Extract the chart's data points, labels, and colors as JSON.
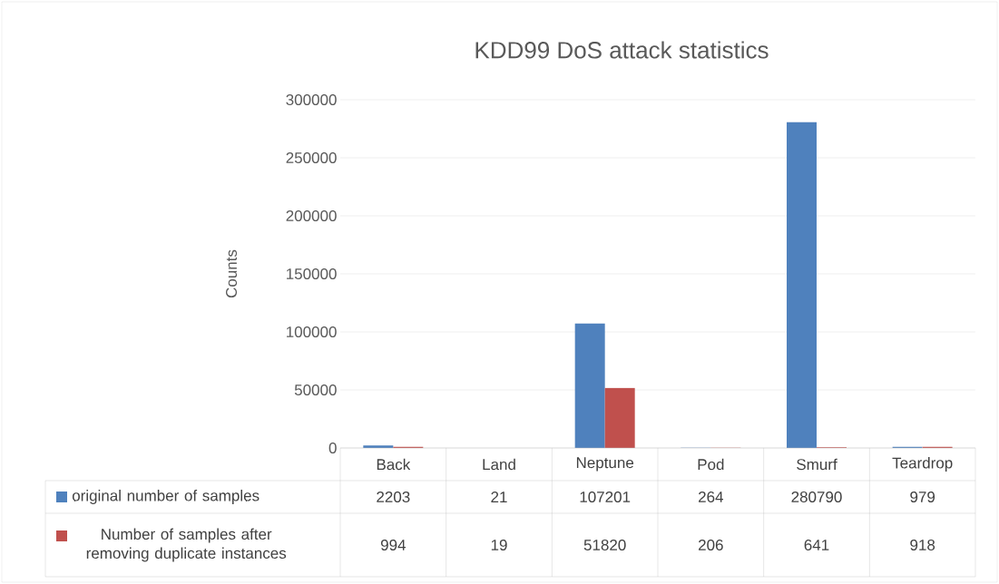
{
  "chart_data": {
    "type": "bar",
    "title": "KDD99 DoS attack statistics",
    "ylabel": "Counts",
    "categories": [
      "Back",
      "Land",
      "Neptune",
      "Pod",
      "Smurf",
      "Teardrop"
    ],
    "series": [
      {
        "name": "original number of samples",
        "color": "#4f81bd",
        "values": [
          2203,
          21,
          107201,
          264,
          280790,
          979
        ]
      },
      {
        "name": "Number of samples after removing duplicate instances",
        "color": "#c0504d",
        "values": [
          994,
          19,
          51820,
          206,
          641,
          918
        ]
      }
    ],
    "ylim": [
      0,
      300000
    ],
    "yticks": [
      0,
      50000,
      100000,
      150000,
      200000,
      250000,
      300000
    ],
    "grid": "y",
    "data_labels": true,
    "legend": "bottom"
  }
}
